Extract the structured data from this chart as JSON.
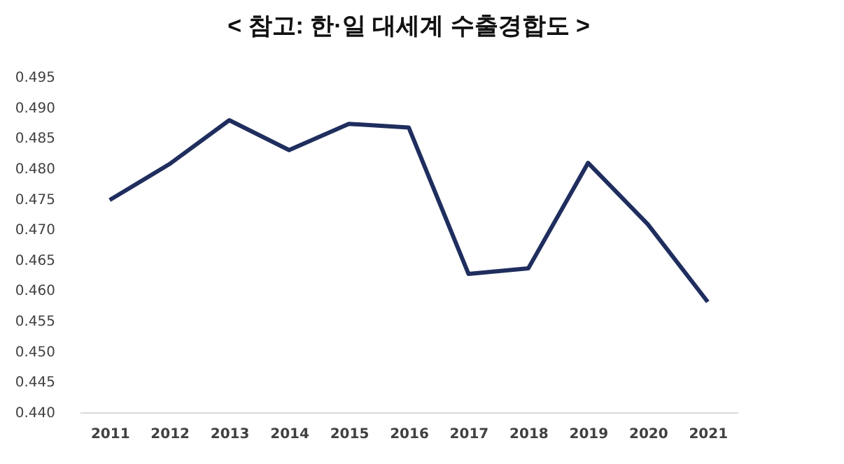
{
  "chart_data": {
    "type": "line",
    "title": "< 참고: 한·일 대세계 수출경합도 >",
    "categories": [
      "2011",
      "2012",
      "2013",
      "2014",
      "2015",
      "2016",
      "2017",
      "2018",
      "2019",
      "2020",
      "2021"
    ],
    "series": [
      {
        "color": "#1f2e5e",
        "values": [
          0.4748,
          0.4807,
          0.4879,
          0.483,
          0.4873,
          0.4867,
          0.4627,
          0.4636,
          0.4809,
          0.4708,
          0.4581
        ]
      }
    ],
    "ylim": [
      0.44,
      0.495
    ],
    "yticks": [
      {
        "value": 0.44,
        "label": "0.440"
      },
      {
        "value": 0.445,
        "label": "0.445"
      },
      {
        "value": 0.45,
        "label": "0.450"
      },
      {
        "value": 0.455,
        "label": "0.455"
      },
      {
        "value": 0.46,
        "label": "0.460"
      },
      {
        "value": 0.465,
        "label": "0.465"
      },
      {
        "value": 0.47,
        "label": "0.470"
      },
      {
        "value": 0.475,
        "label": "0.475"
      },
      {
        "value": 0.48,
        "label": "0.480"
      },
      {
        "value": 0.485,
        "label": "0.485"
      },
      {
        "value": 0.49,
        "label": "0.490"
      },
      {
        "value": 0.495,
        "label": "0.495"
      }
    ],
    "grid": false,
    "legend": false,
    "marker": "none",
    "line_style": "solid"
  }
}
